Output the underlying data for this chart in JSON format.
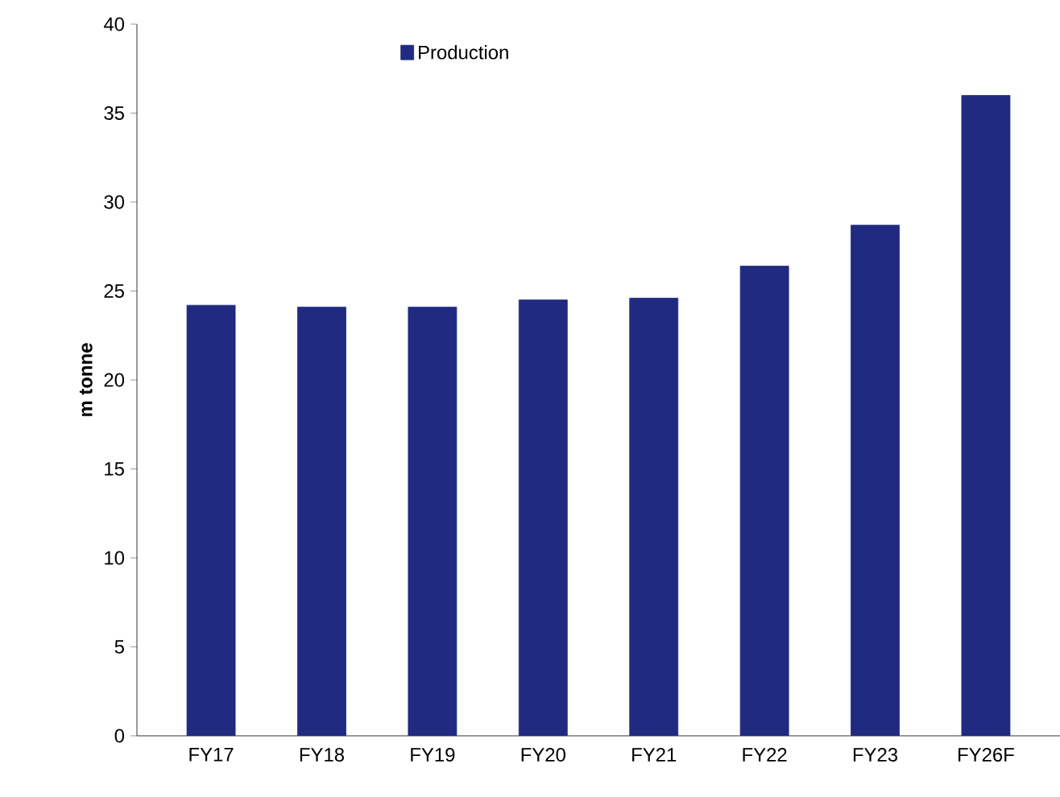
{
  "chart_data": {
    "type": "bar",
    "ylabel": "m tonne",
    "categories": [
      "FY17",
      "FY18",
      "FY19",
      "FY20",
      "FY21",
      "FY22",
      "FY23",
      "FY26F"
    ],
    "series": [
      {
        "name": "Production",
        "color": "#1f2a80",
        "values": [
          24.2,
          24.1,
          24.1,
          24.5,
          24.6,
          26.4,
          28.7,
          36.0
        ]
      }
    ],
    "ylim": [
      0,
      40
    ],
    "yticks": [
      0,
      5,
      10,
      15,
      20,
      25,
      30,
      35,
      40
    ],
    "grid": false,
    "legend": "top"
  }
}
